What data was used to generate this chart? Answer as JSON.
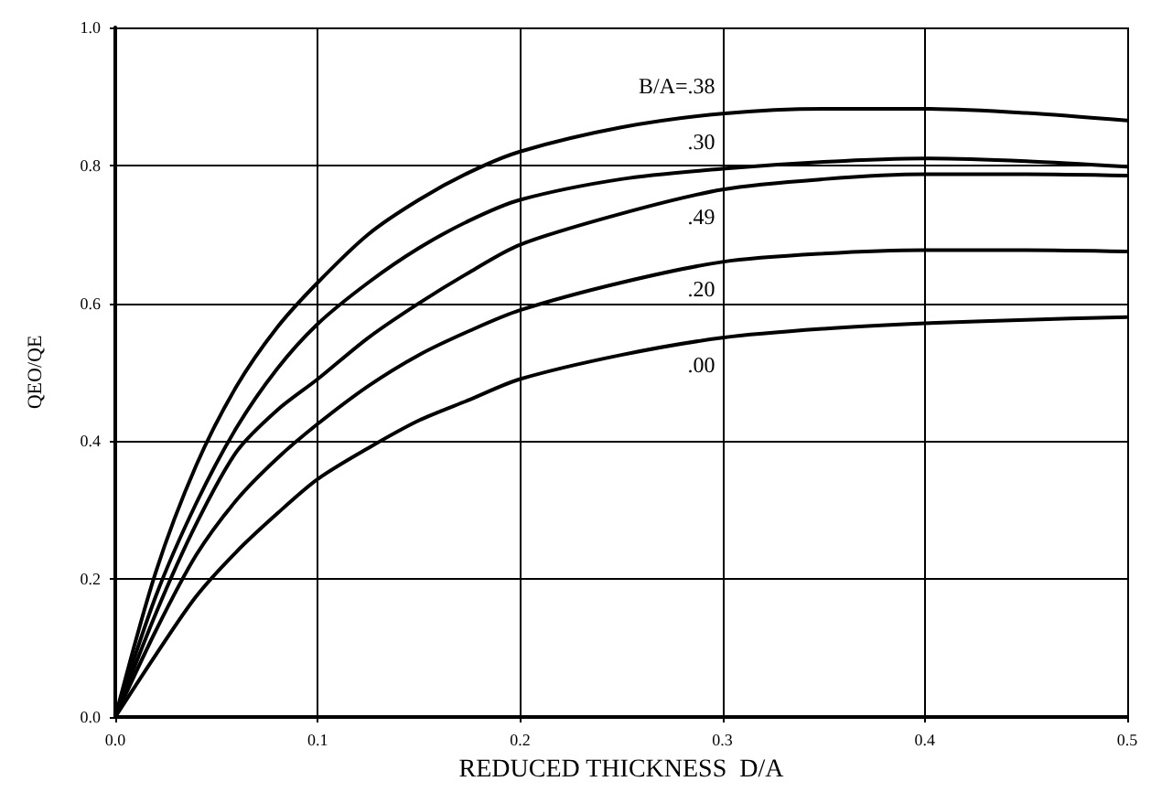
{
  "chart_data": {
    "type": "line",
    "xlabel": "REDUCED THICKNESS  D/A",
    "ylabel": "QEO/QE",
    "xlim": [
      0,
      0.5
    ],
    "xticks": [
      {
        "value": 0,
        "label": "0.0"
      },
      {
        "value": 0.1,
        "label": "0.1"
      },
      {
        "value": 0.2,
        "label": "0.2"
      },
      {
        "value": 0.3,
        "label": "0.3"
      },
      {
        "value": 0.4,
        "label": "0.4"
      },
      {
        "value": 0.5,
        "label": "0.5"
      }
    ],
    "ylim": [
      0,
      1
    ],
    "yticks": [
      {
        "value": 0,
        "label": "0.0"
      },
      {
        "value": 0.2,
        "label": "0.2"
      },
      {
        "value": 0.4,
        "label": "0.4"
      },
      {
        "value": 0.6,
        "label": "0.6"
      },
      {
        "value": 0.8,
        "label": "0.8"
      },
      {
        "value": 1,
        "label": "1.0"
      }
    ],
    "grid": true,
    "legend": false,
    "marker": "none",
    "line_style": "solid",
    "x": [
      0,
      0.02,
      0.04,
      0.06,
      0.08,
      0.1,
      0.125,
      0.15,
      0.175,
      0.2,
      0.25,
      0.3,
      0.35,
      0.4,
      0.45,
      0.5
    ],
    "series": [
      {
        "name": "B/A=.38",
        "color": "#000000",
        "values": [
          0,
          0.21,
          0.365,
          0.48,
          0.565,
          0.63,
          0.7,
          0.75,
          0.79,
          0.82,
          0.855,
          0.875,
          0.882,
          0.882,
          0.876,
          0.865
        ]
      },
      {
        "name": ".30",
        "color": "#000000",
        "values": [
          0,
          0.175,
          0.31,
          0.42,
          0.505,
          0.57,
          0.63,
          0.68,
          0.72,
          0.75,
          0.78,
          0.795,
          0.805,
          0.81,
          0.806,
          0.798
        ]
      },
      {
        "name": ".49",
        "color": "#000000",
        "values": [
          0,
          0.15,
          0.28,
          0.385,
          0.445,
          0.49,
          0.55,
          0.6,
          0.645,
          0.685,
          0.73,
          0.765,
          0.78,
          0.787,
          0.787,
          0.785
        ]
      },
      {
        "name": ".20",
        "color": "#000000",
        "values": [
          0,
          0.125,
          0.235,
          0.315,
          0.375,
          0.425,
          0.48,
          0.525,
          0.56,
          0.59,
          0.63,
          0.66,
          0.672,
          0.677,
          0.677,
          0.675
        ]
      },
      {
        "name": ".00",
        "color": "#000000",
        "values": [
          0,
          0.09,
          0.175,
          0.24,
          0.295,
          0.345,
          0.39,
          0.43,
          0.46,
          0.49,
          0.525,
          0.55,
          0.563,
          0.571,
          0.576,
          0.58
        ]
      }
    ]
  }
}
